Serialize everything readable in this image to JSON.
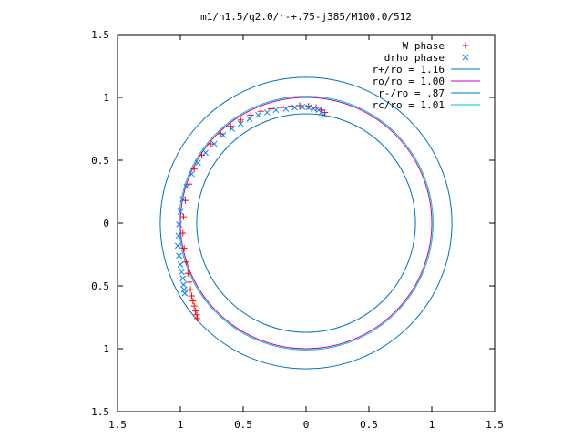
{
  "chart_data": {
    "type": "scatter",
    "title": "m1/n1.5/q2.0/r-+.75-j385/M100.0/512",
    "xlabel": "",
    "ylabel": "",
    "xlim": [
      -1.5,
      1.5
    ],
    "ylim": [
      -1.5,
      1.5
    ],
    "grid": false,
    "legend_position": "top-right",
    "x_ticks": [
      {
        "value": -1.5,
        "label": "1.5"
      },
      {
        "value": -1.0,
        "label": "1"
      },
      {
        "value": -0.5,
        "label": "0.5"
      },
      {
        "value": 0.0,
        "label": "0"
      },
      {
        "value": 0.5,
        "label": "0.5"
      },
      {
        "value": 1.0,
        "label": "1"
      },
      {
        "value": 1.5,
        "label": "1.5"
      }
    ],
    "y_ticks": [
      {
        "value": 1.5,
        "label": "1.5"
      },
      {
        "value": 1.0,
        "label": "1"
      },
      {
        "value": 0.5,
        "label": "0.5"
      },
      {
        "value": 0.0,
        "label": "0"
      },
      {
        "value": -0.5,
        "label": "0.5"
      },
      {
        "value": -1.0,
        "label": "1"
      },
      {
        "value": -1.5,
        "label": "1.5"
      }
    ],
    "series": [
      {
        "name": "W phase",
        "marker": "plus",
        "color": "#ff0000",
        "points": [
          [
            0.15,
            0.88
          ],
          [
            0.12,
            0.9
          ],
          [
            0.08,
            0.92
          ],
          [
            0.02,
            0.93
          ],
          [
            -0.05,
            0.935
          ],
          [
            -0.12,
            0.93
          ],
          [
            -0.2,
            0.92
          ],
          [
            -0.28,
            0.91
          ],
          [
            -0.36,
            0.89
          ],
          [
            -0.44,
            0.86
          ],
          [
            -0.52,
            0.82
          ],
          [
            -0.6,
            0.77
          ],
          [
            -0.68,
            0.71
          ],
          [
            -0.76,
            0.63
          ],
          [
            -0.83,
            0.54
          ],
          [
            -0.89,
            0.43
          ],
          [
            -0.93,
            0.31
          ],
          [
            -0.96,
            0.18
          ],
          [
            -0.975,
            0.05
          ],
          [
            -0.98,
            -0.08
          ],
          [
            -0.97,
            -0.2
          ],
          [
            -0.955,
            -0.31
          ],
          [
            -0.94,
            -0.4
          ],
          [
            -0.93,
            -0.47
          ],
          [
            -0.92,
            -0.53
          ],
          [
            -0.91,
            -0.58
          ],
          [
            -0.9,
            -0.62
          ],
          [
            -0.89,
            -0.66
          ],
          [
            -0.88,
            -0.7
          ],
          [
            -0.87,
            -0.73
          ],
          [
            -0.865,
            -0.76
          ]
        ]
      },
      {
        "name": "drho phase",
        "marker": "cross",
        "color": "#0080ff",
        "points": [
          [
            0.14,
            0.86
          ],
          [
            0.12,
            0.88
          ],
          [
            0.1,
            0.9
          ],
          [
            0.06,
            0.91
          ],
          [
            0.02,
            0.92
          ],
          [
            -0.03,
            0.925
          ],
          [
            -0.09,
            0.92
          ],
          [
            -0.16,
            0.91
          ],
          [
            -0.24,
            0.9
          ],
          [
            -0.31,
            0.88
          ],
          [
            -0.38,
            0.86
          ],
          [
            -0.45,
            0.83
          ],
          [
            -0.52,
            0.79
          ],
          [
            -0.59,
            0.75
          ],
          [
            -0.66,
            0.7
          ],
          [
            -0.73,
            0.63
          ],
          [
            -0.8,
            0.56
          ],
          [
            -0.86,
            0.48
          ],
          [
            -0.91,
            0.39
          ],
          [
            -0.95,
            0.29
          ],
          [
            -0.98,
            0.19
          ],
          [
            -1.0,
            0.09
          ],
          [
            -1.01,
            -0.01
          ],
          [
            -1.015,
            -0.1
          ],
          [
            -1.02,
            -0.18
          ],
          [
            -1.01,
            -0.26
          ],
          [
            -1.0,
            -0.33
          ],
          [
            -0.99,
            -0.39
          ],
          [
            -0.98,
            -0.44
          ],
          [
            -0.975,
            -0.49
          ],
          [
            -0.97,
            -0.53
          ],
          [
            -0.965,
            -0.56
          ]
        ]
      }
    ],
    "circles": [
      {
        "name": "r+/ro = 1.16",
        "r": 1.16,
        "color": "#0070c0"
      },
      {
        "name": "ro/ro = 1.00",
        "r": 1.0,
        "color": "#c000c0"
      },
      {
        "name": "r-/ro = .87",
        "r": 0.87,
        "color": "#0070c0"
      },
      {
        "name": "rc/ro = 1.01",
        "r": 1.01,
        "color": "#00c0c0"
      }
    ]
  }
}
